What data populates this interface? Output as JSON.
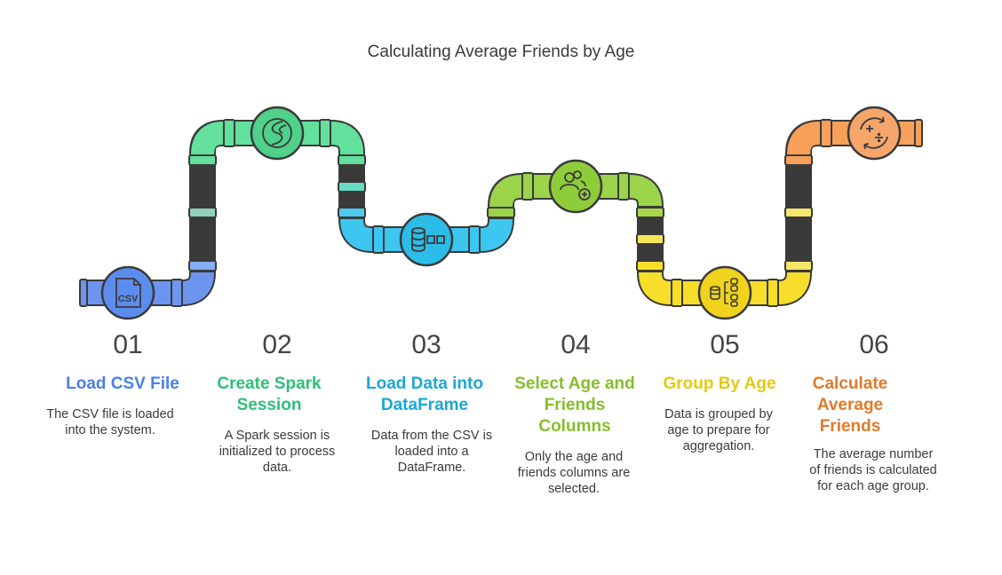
{
  "title": "Calculating Average Friends by Age",
  "colors": {
    "outline": "#3a3a3a",
    "s1": "#5b8def",
    "s2": "#4fd18b",
    "s3": "#2bbde8",
    "s4": "#8fcc3a",
    "s5": "#f1d21c",
    "s6": "#f08c3c"
  },
  "steps": [
    {
      "num": "01",
      "heading": "Load CSV File",
      "desc": "The CSV file is loaded into the system.",
      "icon": "csv-file-icon",
      "color": "#4a80e8"
    },
    {
      "num": "02",
      "heading": "Create Spark Session",
      "desc": "A Spark session is initialized to process data.",
      "icon": "spark-icon",
      "color": "#2dbf78"
    },
    {
      "num": "03",
      "heading": "Load Data into DataFrame",
      "desc": "Data from the CSV is loaded into a DataFrame.",
      "icon": "database-icon",
      "color": "#1aa7d4"
    },
    {
      "num": "04",
      "heading": "Select Age and Friends Columns",
      "desc": "Only the age and friends columns are selected.",
      "icon": "users-add-icon",
      "color": "#86bd2c"
    },
    {
      "num": "05",
      "heading": "Group By Age",
      "desc": "Data is grouped by age to prepare for aggregation.",
      "icon": "group-icon",
      "color": "#e3c913"
    },
    {
      "num": "06",
      "heading": "Calculate Average Friends",
      "desc": "The average number of friends is calculated for each age group.",
      "icon": "math-ops-icon",
      "color": "#e07a2c"
    }
  ]
}
